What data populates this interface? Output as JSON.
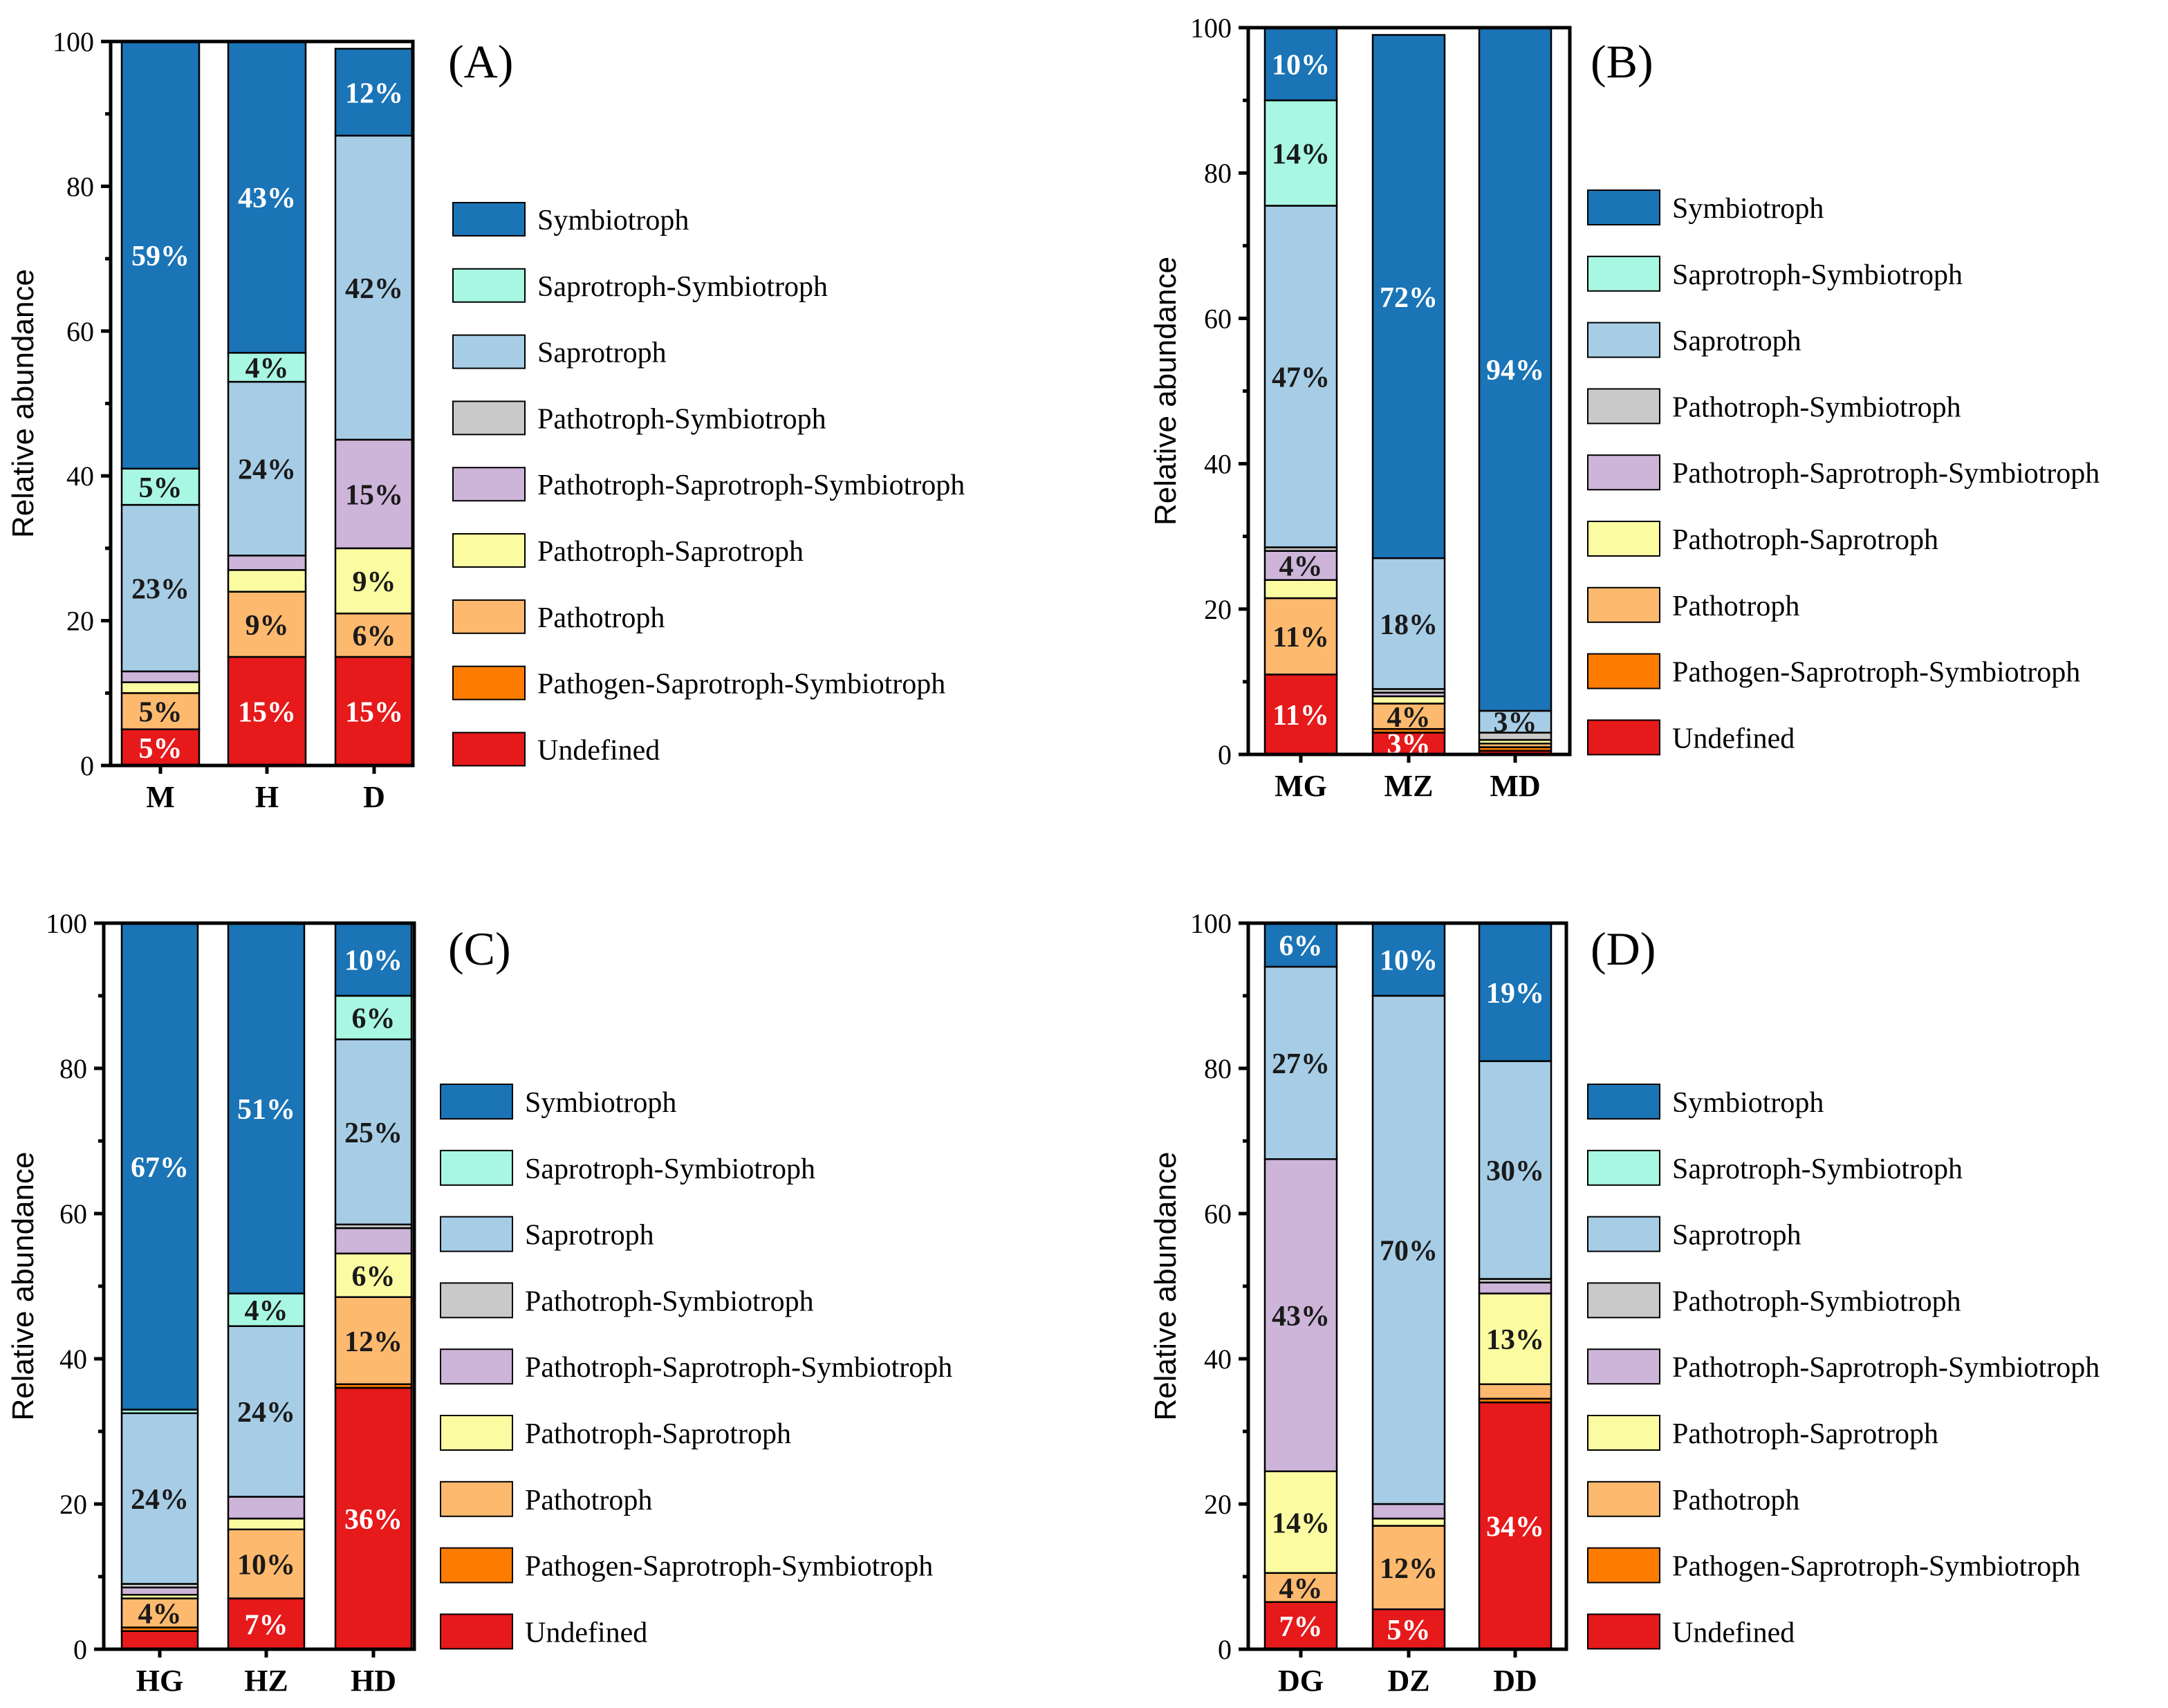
{
  "categories_order": [
    "Undefined",
    "Pathogen-Saprotroph-Symbiotroph",
    "Pathotroph",
    "Pathotroph-Saprotroph",
    "Pathotroph-Saprotroph-Symbiotroph",
    "Pathotroph-Symbiotroph",
    "Saprotroph",
    "Saprotroph-Symbiotroph",
    "Symbiotroph"
  ],
  "legend": [
    {
      "name": "Symbiotroph",
      "color": "#1a74b6"
    },
    {
      "name": "Saprotroph-Symbiotroph",
      "color": "#a8f7e2"
    },
    {
      "name": "Saprotroph",
      "color": "#a7cde6"
    },
    {
      "name": "Pathotroph-Symbiotroph",
      "color": "#c9c9c9"
    },
    {
      "name": "Pathotroph-Saprotroph-Symbiotroph",
      "color": "#cdb4d9"
    },
    {
      "name": "Pathotroph-Saprotroph",
      "color": "#fbfca1"
    },
    {
      "name": "Pathotroph",
      "color": "#fdb96e"
    },
    {
      "name": "Pathogen-Saprotroph-Symbiotroph",
      "color": "#fd7c00"
    },
    {
      "name": "Undefined",
      "color": "#e6191b"
    }
  ],
  "chart_data": [
    {
      "type": "bar",
      "stacked": true,
      "panel": "(A)",
      "ylabel": "Relative abundance",
      "ylim": [
        0,
        100
      ],
      "yticks": [
        "0",
        "20",
        "40",
        "60",
        "80",
        "100"
      ],
      "categories": [
        "M",
        "H",
        "D"
      ],
      "series": [
        {
          "name": "Undefined",
          "values": [
            5,
            15,
            15
          ],
          "labels": [
            "5%",
            "15%",
            "15%"
          ]
        },
        {
          "name": "Pathogen-Saprotroph-Symbiotroph",
          "values": [
            0,
            0,
            0
          ],
          "labels": [
            "",
            "",
            ""
          ]
        },
        {
          "name": "Pathotroph",
          "values": [
            5,
            9,
            6
          ],
          "labels": [
            "5%",
            "9%",
            "6%"
          ]
        },
        {
          "name": "Pathotroph-Saprotroph",
          "values": [
            1.5,
            3,
            9
          ],
          "labels": [
            "",
            "",
            "9%"
          ]
        },
        {
          "name": "Pathotroph-Saprotroph-Symbiotroph",
          "values": [
            1.5,
            2,
            15
          ],
          "labels": [
            "",
            "",
            "15%"
          ]
        },
        {
          "name": "Pathotroph-Symbiotroph",
          "values": [
            0,
            0,
            0
          ],
          "labels": [
            "",
            "",
            ""
          ]
        },
        {
          "name": "Saprotroph",
          "values": [
            23,
            24,
            42
          ],
          "labels": [
            "23%",
            "24%",
            "42%"
          ]
        },
        {
          "name": "Saprotroph-Symbiotroph",
          "values": [
            5,
            4,
            0
          ],
          "labels": [
            "5%",
            "4%",
            ""
          ]
        },
        {
          "name": "Symbiotroph",
          "values": [
            59,
            43,
            12
          ],
          "labels": [
            "59%",
            "43%",
            "12%"
          ]
        }
      ]
    },
    {
      "type": "bar",
      "stacked": true,
      "panel": "(B)",
      "ylabel": "Relative abundance",
      "ylim": [
        0,
        100
      ],
      "yticks": [
        "0",
        "20",
        "40",
        "60",
        "80",
        "100"
      ],
      "categories": [
        "MG",
        "MZ",
        "MD"
      ],
      "series": [
        {
          "name": "Undefined",
          "values": [
            11,
            3,
            0.5
          ],
          "labels": [
            "11%",
            "3%",
            ""
          ]
        },
        {
          "name": "Pathogen-Saprotroph-Symbiotroph",
          "values": [
            0,
            0.5,
            0.5
          ],
          "labels": [
            "",
            "",
            ""
          ]
        },
        {
          "name": "Pathotroph",
          "values": [
            10.5,
            3.5,
            0.5
          ],
          "labels": [
            "11%",
            "4%",
            ""
          ]
        },
        {
          "name": "Pathotroph-Saprotroph",
          "values": [
            2.5,
            1,
            0.5
          ],
          "labels": [
            "",
            "",
            ""
          ]
        },
        {
          "name": "Pathotroph-Saprotroph-Symbiotroph",
          "values": [
            4,
            0.5,
            0
          ],
          "labels": [
            "4%",
            "",
            ""
          ]
        },
        {
          "name": "Pathotroph-Symbiotroph",
          "values": [
            0.5,
            0.5,
            1
          ],
          "labels": [
            "",
            "",
            ""
          ]
        },
        {
          "name": "Saprotroph",
          "values": [
            47,
            18,
            3
          ],
          "labels": [
            "47%",
            "18%",
            "3%"
          ]
        },
        {
          "name": "Saprotroph-Symbiotroph",
          "values": [
            14.5,
            0,
            0
          ],
          "labels": [
            "14%",
            "",
            ""
          ]
        },
        {
          "name": "Symbiotroph",
          "values": [
            10,
            72,
            94
          ],
          "labels": [
            "10%",
            "72%",
            "94%"
          ]
        }
      ]
    },
    {
      "type": "bar",
      "stacked": true,
      "panel": "(C)",
      "ylabel": "Relative abundance",
      "ylim": [
        0,
        100
      ],
      "yticks": [
        "0",
        "20",
        "40",
        "60",
        "80",
        "100"
      ],
      "categories": [
        "HG",
        "HZ",
        "HD"
      ],
      "series": [
        {
          "name": "Undefined",
          "values": [
            2.5,
            7,
            36
          ],
          "labels": [
            "",
            "7%",
            "36%"
          ]
        },
        {
          "name": "Pathogen-Saprotroph-Symbiotroph",
          "values": [
            0.5,
            0,
            0.5
          ],
          "labels": [
            "",
            "",
            ""
          ]
        },
        {
          "name": "Pathotroph",
          "values": [
            4,
            9.5,
            12
          ],
          "labels": [
            "4%",
            "10%",
            "12%"
          ]
        },
        {
          "name": "Pathotroph-Saprotroph",
          "values": [
            0.5,
            1.5,
            6
          ],
          "labels": [
            "",
            "",
            "6%"
          ]
        },
        {
          "name": "Pathotroph-Saprotroph-Symbiotroph",
          "values": [
            1,
            3,
            3.5
          ],
          "labels": [
            "",
            "",
            ""
          ]
        },
        {
          "name": "Pathotroph-Symbiotroph",
          "values": [
            0.5,
            0,
            0.5
          ],
          "labels": [
            "",
            "",
            ""
          ]
        },
        {
          "name": "Saprotroph",
          "values": [
            23.5,
            23.5,
            25.5
          ],
          "labels": [
            "24%",
            "24%",
            "25%"
          ]
        },
        {
          "name": "Saprotroph-Symbiotroph",
          "values": [
            0.5,
            4.5,
            6
          ],
          "labels": [
            "",
            "4%",
            "6%"
          ]
        },
        {
          "name": "Symbiotroph",
          "values": [
            67,
            51,
            10
          ],
          "labels": [
            "67%",
            "51%",
            "10%"
          ]
        }
      ]
    },
    {
      "type": "bar",
      "stacked": true,
      "panel": "(D)",
      "ylabel": "Relative abundance",
      "ylim": [
        0,
        100
      ],
      "yticks": [
        "0",
        "20",
        "40",
        "60",
        "80",
        "100"
      ],
      "categories": [
        "DG",
        "DZ",
        "DD"
      ],
      "series": [
        {
          "name": "Undefined",
          "values": [
            6.5,
            5.5,
            34
          ],
          "labels": [
            "7%",
            "5%",
            "34%"
          ]
        },
        {
          "name": "Pathogen-Saprotroph-Symbiotroph",
          "values": [
            0,
            0,
            0.5
          ],
          "labels": [
            "",
            "",
            ""
          ]
        },
        {
          "name": "Pathotroph",
          "values": [
            4,
            11.5,
            2
          ],
          "labels": [
            "4%",
            "12%",
            ""
          ]
        },
        {
          "name": "Pathotroph-Saprotroph",
          "values": [
            14,
            1,
            12.5
          ],
          "labels": [
            "14%",
            "",
            "13%"
          ]
        },
        {
          "name": "Pathotroph-Saprotroph-Symbiotroph",
          "values": [
            43,
            2,
            1.5
          ],
          "labels": [
            "43%",
            "",
            ""
          ]
        },
        {
          "name": "Pathotroph-Symbiotroph",
          "values": [
            0,
            0,
            0.5
          ],
          "labels": [
            "",
            "",
            ""
          ]
        },
        {
          "name": "Saprotroph",
          "values": [
            26.5,
            70,
            30
          ],
          "labels": [
            "27%",
            "70%",
            "30%"
          ]
        },
        {
          "name": "Saprotroph-Symbiotroph",
          "values": [
            0,
            0,
            0
          ],
          "labels": [
            "",
            "",
            ""
          ]
        },
        {
          "name": "Symbiotroph",
          "values": [
            6,
            10,
            19
          ],
          "labels": [
            "6%",
            "10%",
            "19%"
          ]
        }
      ]
    }
  ]
}
